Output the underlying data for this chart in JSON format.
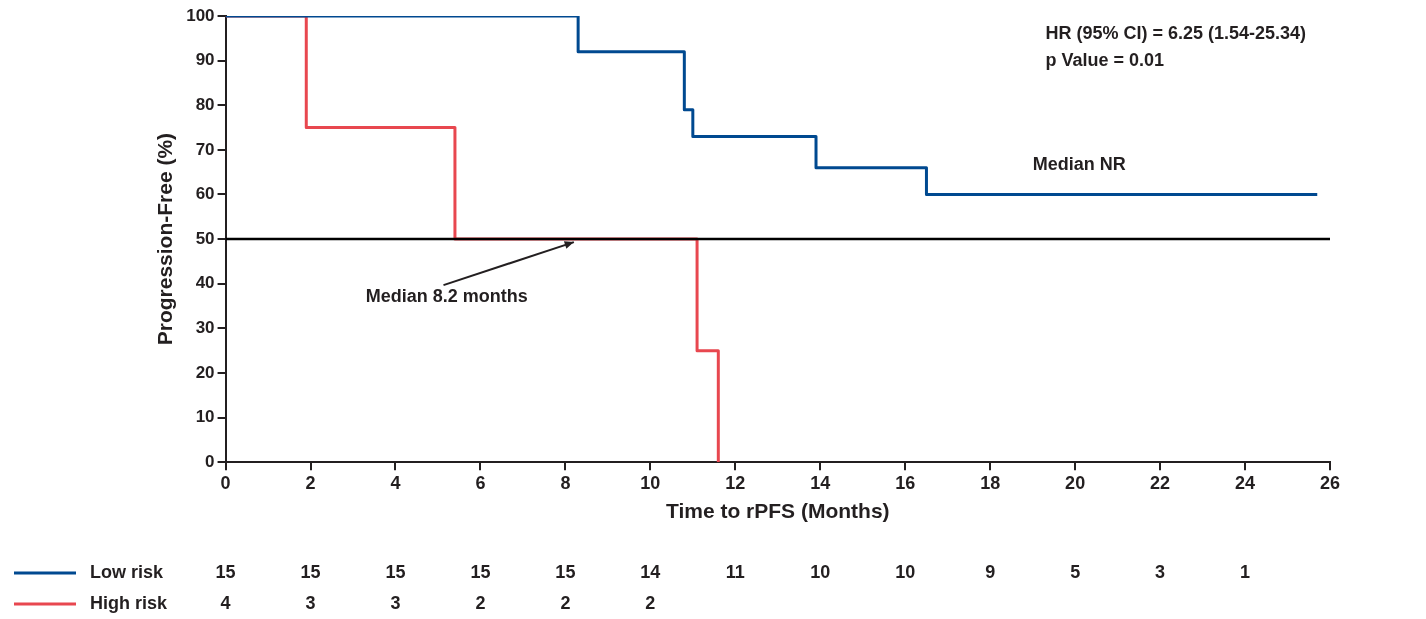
{
  "chart_data": {
    "type": "step",
    "xlabel": "Time to rPFS (Months)",
    "ylabel": "Progression-Free (%)",
    "xlim": [
      0,
      26
    ],
    "xticks": [
      0,
      2,
      4,
      6,
      8,
      10,
      12,
      14,
      16,
      18,
      20,
      22,
      24,
      26
    ],
    "ylim": [
      0,
      100
    ],
    "yticks": [
      0,
      10,
      20,
      30,
      40,
      50,
      60,
      70,
      80,
      90,
      100
    ],
    "series": [
      {
        "name": "Low risk",
        "color": "#004990",
        "x": [
          0,
          8.3,
          10.8,
          11.0,
          13.9,
          16.5,
          25.7
        ],
        "values": [
          100,
          92,
          79,
          73,
          66,
          60,
          60
        ]
      },
      {
        "name": "High risk",
        "color": "#e8474f",
        "x": [
          0,
          1.9,
          5.4,
          11.1,
          11.6
        ],
        "values": [
          100,
          75,
          50,
          25,
          0
        ]
      }
    ],
    "ref_lines": [
      {
        "axis": "y",
        "value": 50,
        "color": "#000000"
      }
    ],
    "annotations": [
      "HR (95% CI) = 6.25 (1.54-25.34)",
      "p Value = 0.01",
      "Median NR",
      {
        "text": "Median 8.2 months",
        "x": 8.2,
        "y": 50
      },
      "15 15 15 15 15 14 11 10 10 9 5 3 1",
      "4 3 3 2 2 2"
    ],
    "legend": "bottom left",
    "grid": false
  }
}
